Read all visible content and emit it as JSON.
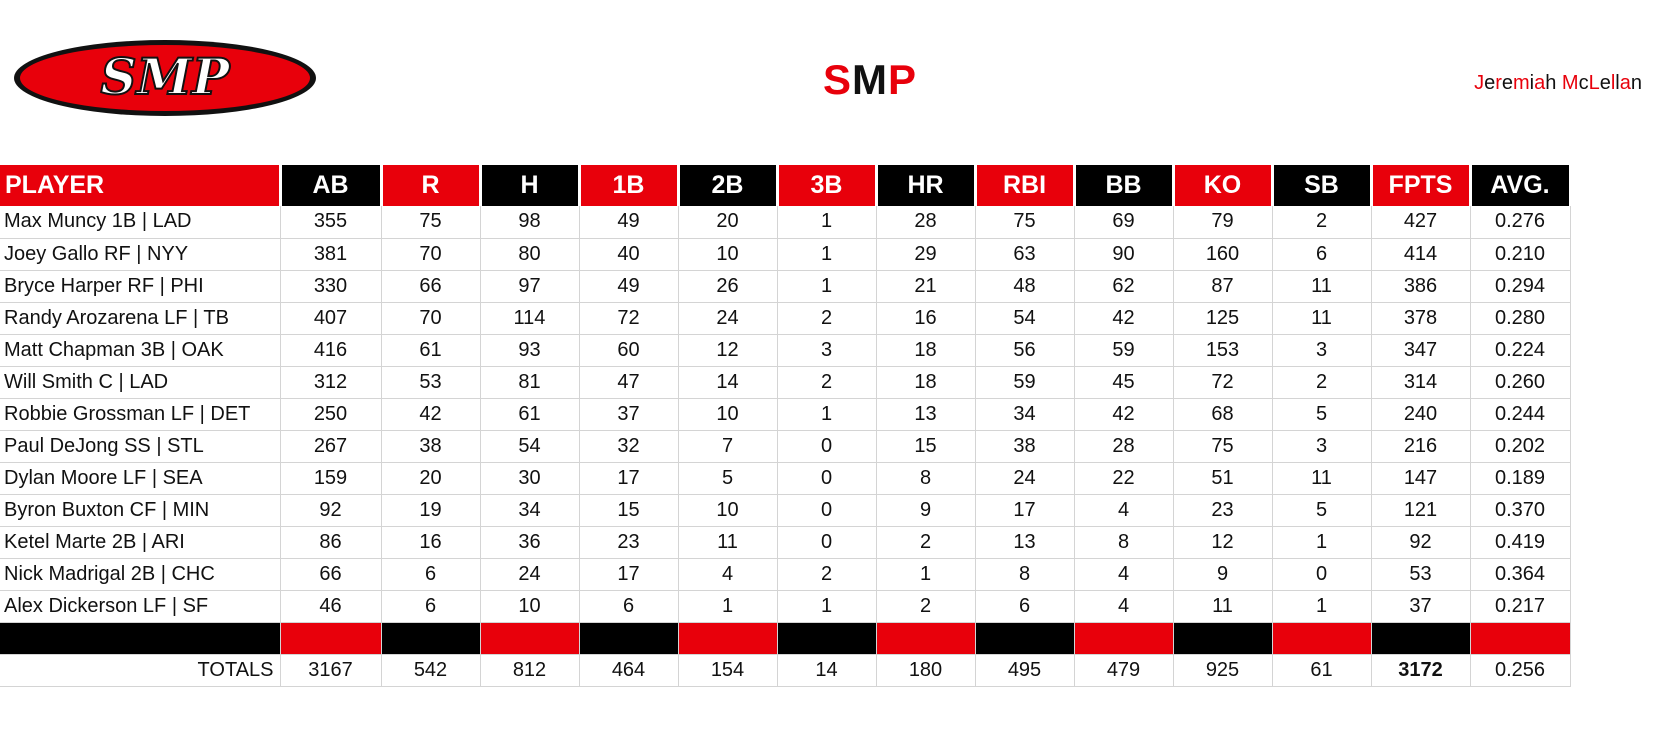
{
  "header": {
    "logo_text": "SMP",
    "title_parts": [
      "S",
      "M",
      "P"
    ],
    "author_parts": [
      "J",
      "e",
      "r",
      "e",
      "m",
      "i",
      "a",
      "h",
      " ",
      "M",
      "c",
      "L",
      "e",
      "l",
      "l",
      "a",
      "n"
    ]
  },
  "colors": {
    "accent_red": "#e8000b",
    "black": "#000000"
  },
  "table": {
    "columns": [
      "PLAYER",
      "AB",
      "R",
      "H",
      "1B",
      "2B",
      "3B",
      "HR",
      "RBI",
      "BB",
      "KO",
      "SB",
      "FPTS",
      "AVG."
    ],
    "rows": [
      [
        "Max Muncy 1B | LAD",
        "355",
        "75",
        "98",
        "49",
        "20",
        "1",
        "28",
        "75",
        "69",
        "79",
        "2",
        "427",
        "0.276"
      ],
      [
        "Joey Gallo RF | NYY",
        "381",
        "70",
        "80",
        "40",
        "10",
        "1",
        "29",
        "63",
        "90",
        "160",
        "6",
        "414",
        "0.210"
      ],
      [
        "Bryce Harper RF | PHI",
        "330",
        "66",
        "97",
        "49",
        "26",
        "1",
        "21",
        "48",
        "62",
        "87",
        "11",
        "386",
        "0.294"
      ],
      [
        "Randy Arozarena LF | TB",
        "407",
        "70",
        "114",
        "72",
        "24",
        "2",
        "16",
        "54",
        "42",
        "125",
        "11",
        "378",
        "0.280"
      ],
      [
        "Matt Chapman 3B | OAK",
        "416",
        "61",
        "93",
        "60",
        "12",
        "3",
        "18",
        "56",
        "59",
        "153",
        "3",
        "347",
        "0.224"
      ],
      [
        "Will Smith C | LAD",
        "312",
        "53",
        "81",
        "47",
        "14",
        "2",
        "18",
        "59",
        "45",
        "72",
        "2",
        "314",
        "0.260"
      ],
      [
        "Robbie Grossman LF | DET",
        "250",
        "42",
        "61",
        "37",
        "10",
        "1",
        "13",
        "34",
        "42",
        "68",
        "5",
        "240",
        "0.244"
      ],
      [
        "Paul DeJong SS | STL",
        "267",
        "38",
        "54",
        "32",
        "7",
        "0",
        "15",
        "38",
        "28",
        "75",
        "3",
        "216",
        "0.202"
      ],
      [
        "Dylan Moore LF | SEA",
        "159",
        "20",
        "30",
        "17",
        "5",
        "0",
        "8",
        "24",
        "22",
        "51",
        "11",
        "147",
        "0.189"
      ],
      [
        "Byron Buxton CF | MIN",
        "92",
        "19",
        "34",
        "15",
        "10",
        "0",
        "9",
        "17",
        "4",
        "23",
        "5",
        "121",
        "0.370"
      ],
      [
        "Ketel Marte 2B | ARI",
        "86",
        "16",
        "36",
        "23",
        "11",
        "0",
        "2",
        "13",
        "8",
        "12",
        "1",
        "92",
        "0.419"
      ],
      [
        "Nick Madrigal 2B | CHC",
        "66",
        "6",
        "24",
        "17",
        "4",
        "2",
        "1",
        "8",
        "4",
        "9",
        "0",
        "53",
        "0.364"
      ],
      [
        "Alex Dickerson LF | SF",
        "46",
        "6",
        "10",
        "6",
        "1",
        "1",
        "2",
        "6",
        "4",
        "11",
        "1",
        "37",
        "0.217"
      ]
    ],
    "totals": [
      "TOTALS",
      "3167",
      "542",
      "812",
      "464",
      "154",
      "14",
      "180",
      "495",
      "479",
      "925",
      "61",
      "3172",
      "0.256"
    ]
  }
}
